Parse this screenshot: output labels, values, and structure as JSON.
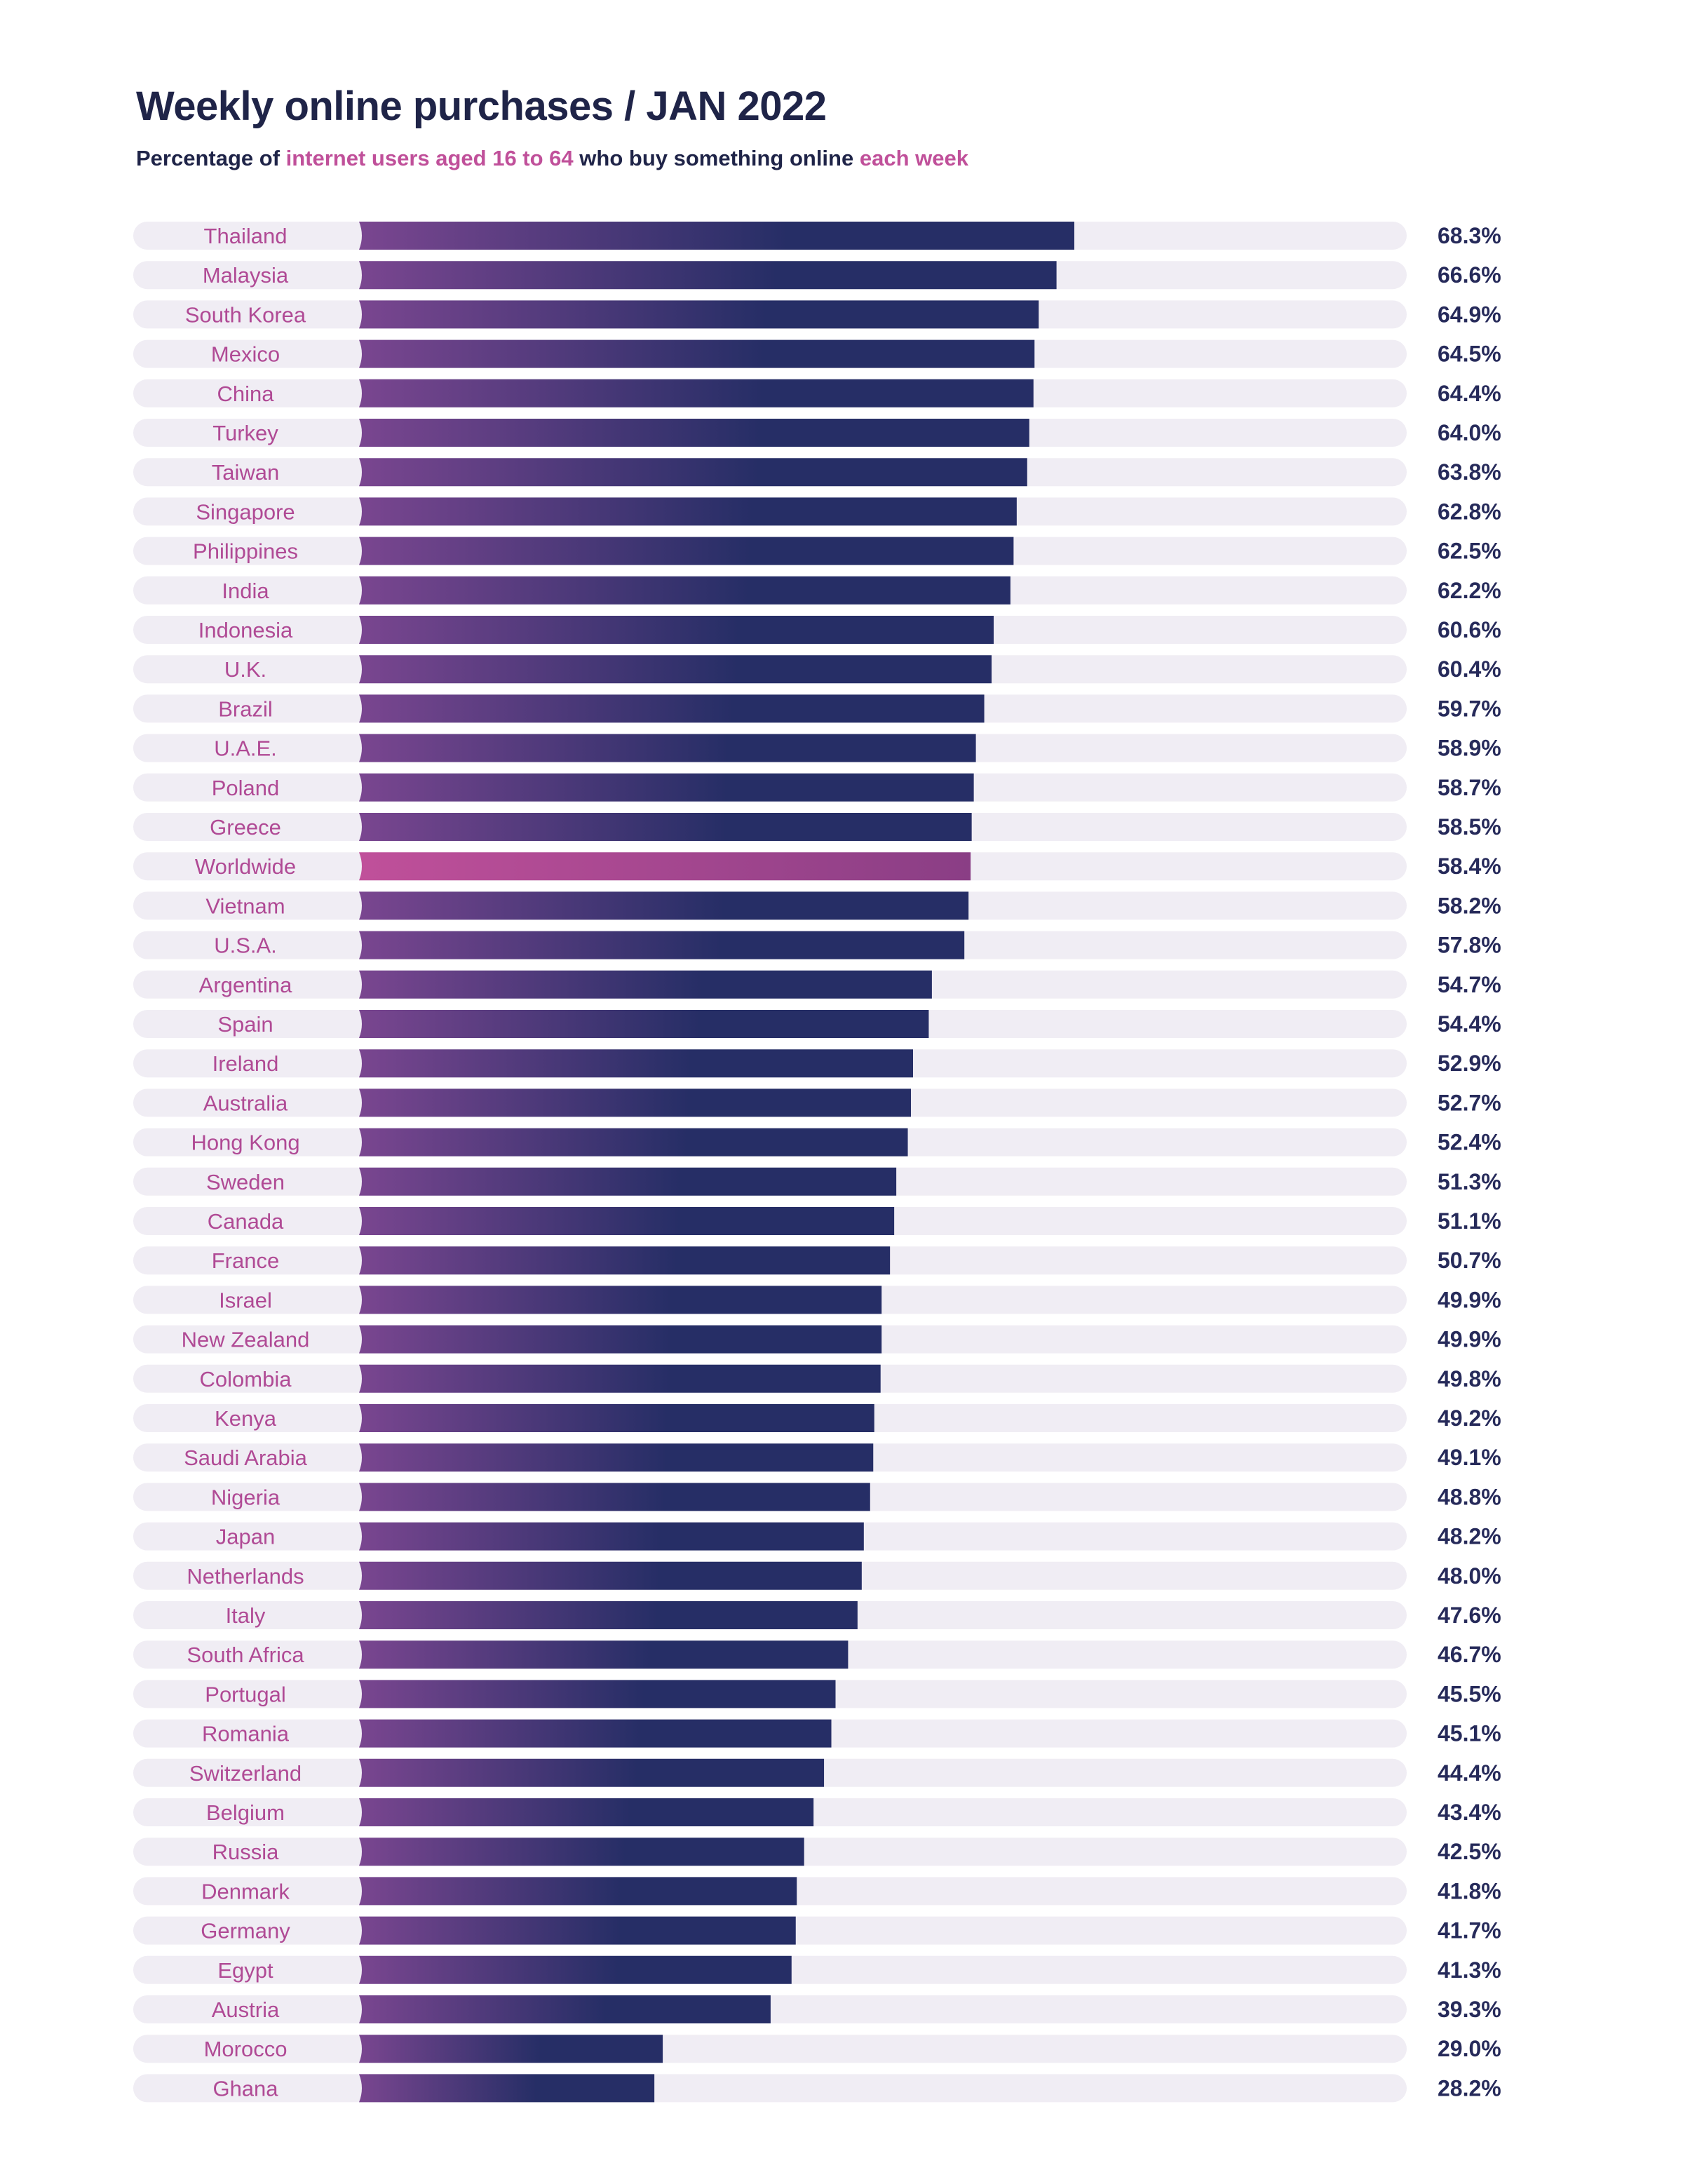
{
  "chart_data": {
    "type": "bar",
    "orientation": "horizontal",
    "title": "Weekly online purchases / JAN 2022",
    "subtitle_parts": [
      {
        "text": "Percentage of ",
        "highlight": false
      },
      {
        "text": "internet users aged 16 to 64",
        "highlight": true
      },
      {
        "text": " who buy something online ",
        "highlight": false
      },
      {
        "text": "each week",
        "highlight": true
      }
    ],
    "xlim": [
      0,
      100
    ],
    "unit": "%",
    "highlight_category": "Worldwide",
    "categories": [
      "Thailand",
      "Malaysia",
      "South Korea",
      "Mexico",
      "China",
      "Turkey",
      "Taiwan",
      "Singapore",
      "Philippines",
      "India",
      "Indonesia",
      "U.K.",
      "Brazil",
      "U.A.E.",
      "Poland",
      "Greece",
      "Worldwide",
      "Vietnam",
      "U.S.A.",
      "Argentina",
      "Spain",
      "Ireland",
      "Australia",
      "Hong Kong",
      "Sweden",
      "Canada",
      "France",
      "Israel",
      "New Zealand",
      "Colombia",
      "Kenya",
      "Saudi Arabia",
      "Nigeria",
      "Japan",
      "Netherlands",
      "Italy",
      "South Africa",
      "Portugal",
      "Romania",
      "Switzerland",
      "Belgium",
      "Russia",
      "Denmark",
      "Germany",
      "Egypt",
      "Austria",
      "Morocco",
      "Ghana"
    ],
    "values": [
      68.3,
      66.6,
      64.9,
      64.5,
      64.4,
      64.0,
      63.8,
      62.8,
      62.5,
      62.2,
      60.6,
      60.4,
      59.7,
      58.9,
      58.7,
      58.5,
      58.4,
      58.2,
      57.8,
      54.7,
      54.4,
      52.9,
      52.7,
      52.4,
      51.3,
      51.1,
      50.7,
      49.9,
      49.9,
      49.8,
      49.2,
      49.1,
      48.8,
      48.2,
      48.0,
      47.6,
      46.7,
      45.5,
      45.1,
      44.4,
      43.4,
      42.5,
      41.8,
      41.7,
      41.3,
      39.3,
      29.0,
      28.2
    ],
    "value_labels": [
      "68.3%",
      "66.6%",
      "64.9%",
      "64.5%",
      "64.4%",
      "64.0%",
      "63.8%",
      "62.8%",
      "62.5%",
      "62.2%",
      "60.6%",
      "60.4%",
      "59.7%",
      "58.9%",
      "58.7%",
      "58.5%",
      "58.4%",
      "58.2%",
      "57.8%",
      "54.7%",
      "54.4%",
      "52.9%",
      "52.7%",
      "52.4%",
      "51.3%",
      "51.1%",
      "50.7%",
      "49.9%",
      "49.9%",
      "49.8%",
      "49.2%",
      "49.1%",
      "48.8%",
      "48.2%",
      "48.0%",
      "47.6%",
      "46.7%",
      "45.5%",
      "45.1%",
      "44.4%",
      "43.4%",
      "42.5%",
      "41.8%",
      "41.7%",
      "41.3%",
      "39.3%",
      "29.0%",
      "28.2%"
    ]
  },
  "colors": {
    "title": "#1f2448",
    "accent": "#c0509a",
    "track": "#f0edf4",
    "bar_start": "#7a4690",
    "bar_end": "#262e66",
    "highlight_start": "#c0509a",
    "highlight_end": "#8a3e85",
    "value_text": "#262a5a",
    "label_text": "#b04a95"
  }
}
